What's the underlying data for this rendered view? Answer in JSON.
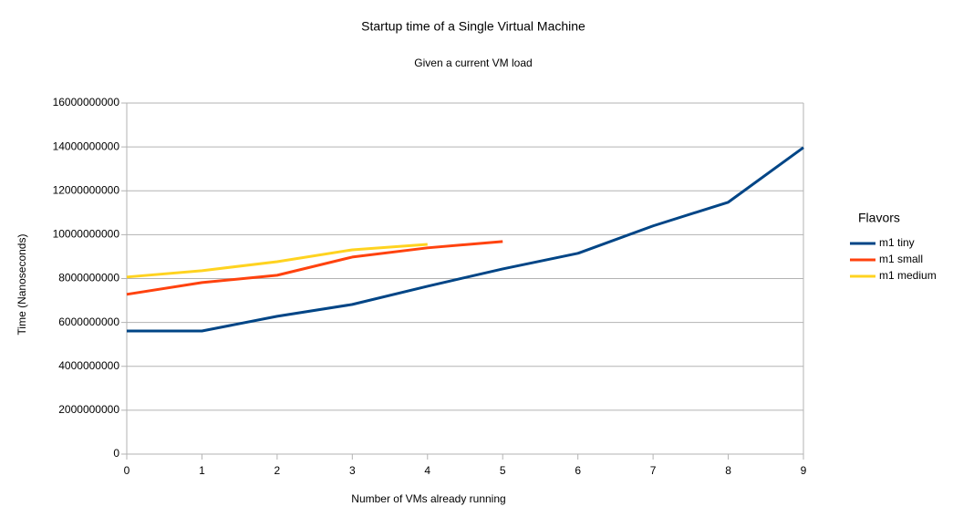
{
  "chart_data": {
    "type": "line",
    "title": "Startup time of a Single Virtual Machine",
    "subtitle": "Given a current VM load",
    "x_label": "Number of VMs already running",
    "y_label": "Time (Nanoseconds)",
    "legend_title": "Flavors",
    "legend": "right",
    "grid": true,
    "x": [
      0,
      1,
      2,
      3,
      4,
      5,
      6,
      7,
      8,
      9
    ],
    "xlim": [
      0,
      9
    ],
    "xticks": [
      0,
      1,
      2,
      3,
      4,
      5,
      6,
      7,
      8,
      9
    ],
    "ylim": [
      0,
      16000000000
    ],
    "yticks": [
      0,
      2000000000,
      4000000000,
      6000000000,
      8000000000,
      10000000000,
      12000000000,
      14000000000,
      16000000000
    ],
    "series": [
      {
        "name": "m1 tiny",
        "color": "#004586",
        "values": [
          5610000000,
          5610000000,
          6280000000,
          6820000000,
          7650000000,
          8440000000,
          9150000000,
          10400000000,
          11480000000,
          13970000000
        ]
      },
      {
        "name": "m1 small",
        "color": "#ff420e",
        "values": [
          7280000000,
          7820000000,
          8150000000,
          8980000000,
          9400000000,
          9690000000,
          null,
          null,
          null,
          null
        ]
      },
      {
        "name": "m1 medium",
        "color": "#ffd320",
        "values": [
          8070000000,
          8360000000,
          8770000000,
          9310000000,
          9560000000,
          null,
          null,
          null,
          null,
          null
        ]
      }
    ]
  }
}
